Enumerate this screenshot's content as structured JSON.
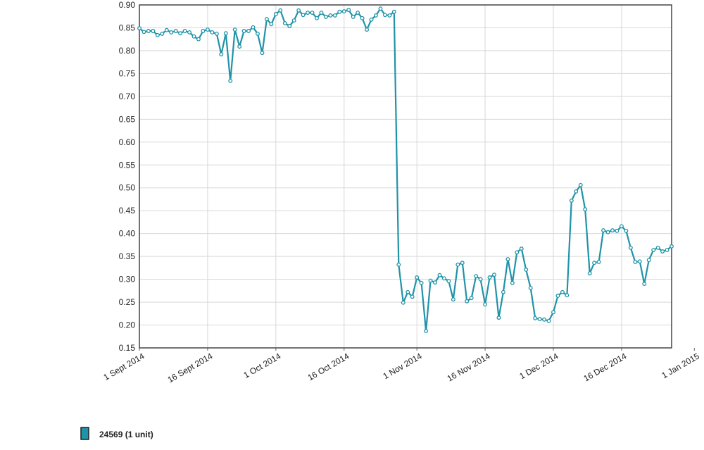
{
  "chart_data": {
    "type": "line",
    "x": [
      "2014-09-01",
      "2014-09-02",
      "2014-09-03",
      "2014-09-04",
      "2014-09-05",
      "2014-09-06",
      "2014-09-07",
      "2014-09-08",
      "2014-09-09",
      "2014-09-10",
      "2014-09-11",
      "2014-09-12",
      "2014-09-13",
      "2014-09-14",
      "2014-09-15",
      "2014-09-16",
      "2014-09-17",
      "2014-09-18",
      "2014-09-19",
      "2014-09-20",
      "2014-09-21",
      "2014-09-22",
      "2014-09-23",
      "2014-09-24",
      "2014-09-25",
      "2014-09-26",
      "2014-09-27",
      "2014-09-28",
      "2014-09-29",
      "2014-09-30",
      "2014-10-01",
      "2014-10-02",
      "2014-10-03",
      "2014-10-04",
      "2014-10-05",
      "2014-10-06",
      "2014-10-07",
      "2014-10-08",
      "2014-10-09",
      "2014-10-10",
      "2014-10-11",
      "2014-10-12",
      "2014-10-13",
      "2014-10-14",
      "2014-10-15",
      "2014-10-16",
      "2014-10-17",
      "2014-10-18",
      "2014-10-19",
      "2014-10-20",
      "2014-10-21",
      "2014-10-22",
      "2014-10-23",
      "2014-10-24",
      "2014-10-25",
      "2014-10-26",
      "2014-10-27",
      "2014-10-28",
      "2014-10-29",
      "2014-10-30",
      "2014-10-31",
      "2014-11-01",
      "2014-11-02",
      "2014-11-03",
      "2014-11-04",
      "2014-11-05",
      "2014-11-06",
      "2014-11-07",
      "2014-11-08",
      "2014-11-09",
      "2014-11-10",
      "2014-11-11",
      "2014-11-12",
      "2014-11-13",
      "2014-11-14",
      "2014-11-15",
      "2014-11-16",
      "2014-11-17",
      "2014-11-18",
      "2014-11-19",
      "2014-11-20",
      "2014-11-21",
      "2014-11-22",
      "2014-11-23",
      "2014-11-24",
      "2014-11-25",
      "2014-11-26",
      "2014-11-27",
      "2014-11-28",
      "2014-11-29",
      "2014-11-30",
      "2014-12-01",
      "2014-12-02",
      "2014-12-03",
      "2014-12-04",
      "2014-12-05",
      "2014-12-06",
      "2014-12-07",
      "2014-12-08",
      "2014-12-09",
      "2014-12-10",
      "2014-12-11",
      "2014-12-12",
      "2014-12-13",
      "2014-12-14",
      "2014-12-15",
      "2014-12-16",
      "2014-12-17",
      "2014-12-18",
      "2014-12-19",
      "2014-12-20",
      "2014-12-21",
      "2014-12-22",
      "2014-12-23",
      "2014-12-24",
      "2014-12-25",
      "2014-12-26",
      "2014-12-27"
    ],
    "series": [
      {
        "name": "24569 (1 unit)",
        "color": "#1f93a8",
        "values": [
          0.849,
          0.841,
          0.843,
          0.843,
          0.834,
          0.837,
          0.845,
          0.84,
          0.843,
          0.838,
          0.843,
          0.84,
          0.831,
          0.825,
          0.843,
          0.846,
          0.84,
          0.837,
          0.792,
          0.838,
          0.734,
          0.846,
          0.809,
          0.843,
          0.843,
          0.851,
          0.837,
          0.795,
          0.869,
          0.858,
          0.88,
          0.888,
          0.86,
          0.854,
          0.866,
          0.888,
          0.878,
          0.883,
          0.883,
          0.871,
          0.883,
          0.874,
          0.877,
          0.877,
          0.885,
          0.886,
          0.889,
          0.874,
          0.883,
          0.871,
          0.846,
          0.868,
          0.877,
          0.892,
          0.878,
          0.877,
          0.885,
          0.332,
          0.249,
          0.272,
          0.262,
          0.304,
          0.292,
          0.187,
          0.297,
          0.293,
          0.309,
          0.302,
          0.296,
          0.256,
          0.332,
          0.336,
          0.252,
          0.259,
          0.307,
          0.3,
          0.245,
          0.304,
          0.31,
          0.216,
          0.272,
          0.344,
          0.292,
          0.359,
          0.367,
          0.321,
          0.281,
          0.215,
          0.213,
          0.212,
          0.209,
          0.228,
          0.264,
          0.272,
          0.265,
          0.472,
          0.492,
          0.506,
          0.453,
          0.313,
          0.336,
          0.338,
          0.407,
          0.403,
          0.407,
          0.406,
          0.416,
          0.406,
          0.369,
          0.338,
          0.339,
          0.29,
          0.342,
          0.364,
          0.369,
          0.361,
          0.364,
          0.372
        ]
      }
    ],
    "xlim": [
      "2014-09-01",
      "2014-12-27"
    ],
    "xticks": [
      {
        "value": "2014-09-01",
        "label": "1 Sept 2014"
      },
      {
        "value": "2014-09-16",
        "label": "16 Sept 2014"
      },
      {
        "value": "2014-10-01",
        "label": "1 Oct 2014"
      },
      {
        "value": "2014-10-16",
        "label": "16 Oct 2014"
      },
      {
        "value": "2014-11-01",
        "label": "1 Nov 2014"
      },
      {
        "value": "2014-11-16",
        "label": "16 Nov 2014"
      },
      {
        "value": "2014-12-01",
        "label": "1 Dec 2014"
      },
      {
        "value": "2014-12-16",
        "label": "16 Dec 2014"
      },
      {
        "value": "2015-01-01",
        "label": "1 Jan 2015"
      }
    ],
    "ylim": [
      0.15,
      0.9
    ],
    "yticks": [
      0.15,
      {
        "value": 0.2,
        "label": "0.20"
      },
      0.25,
      {
        "value": 0.3,
        "label": "0.30"
      },
      0.35,
      {
        "value": 0.4,
        "label": "0.40"
      },
      0.45,
      {
        "value": 0.5,
        "label": "0.50"
      },
      0.55,
      {
        "value": 0.6,
        "label": "0.60"
      },
      0.65,
      {
        "value": 0.7,
        "label": "0.70"
      },
      0.75,
      {
        "value": 0.8,
        "label": "0.80"
      },
      0.85,
      {
        "value": 0.9,
        "label": "0.90"
      }
    ],
    "grid": true
  }
}
